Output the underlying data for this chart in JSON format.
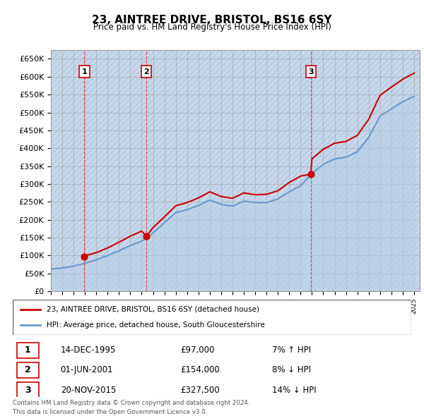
{
  "title": "23, AINTREE DRIVE, BRISTOL, BS16 6SY",
  "subtitle": "Price paid vs. HM Land Registry's House Price Index (HPI)",
  "xlabel": "",
  "ylabel": "",
  "ylim": [
    0,
    675000
  ],
  "yticks": [
    0,
    50000,
    100000,
    150000,
    200000,
    250000,
    300000,
    350000,
    400000,
    450000,
    500000,
    550000,
    600000,
    650000
  ],
  "bg_color": "#dce9f5",
  "hatch_color": "#c0d4e8",
  "grid_color": "#aaaaaa",
  "sale_dates": [
    "1995-12-14",
    "2001-06-01",
    "2015-11-20"
  ],
  "sale_prices": [
    97000,
    154000,
    327500
  ],
  "sale_labels": [
    "1",
    "2",
    "3"
  ],
  "sale_pct": [
    "7% ↑ HPI",
    "8% ↓ HPI",
    "14% ↓ HPI"
  ],
  "sale_dates_str": [
    "14-DEC-1995",
    "01-JUN-2001",
    "20-NOV-2015"
  ],
  "legend_line1": "23, AINTREE DRIVE, BRISTOL, BS16 6SY (detached house)",
  "legend_line2": "HPI: Average price, detached house, South Gloucestershire",
  "footer1": "Contains HM Land Registry data © Crown copyright and database right 2024.",
  "footer2": "This data is licensed under the Open Government Licence v3.0.",
  "hpi_years": [
    1993,
    1994,
    1995,
    1996,
    1997,
    1998,
    1999,
    2000,
    2001,
    2002,
    2003,
    2004,
    2005,
    2006,
    2007,
    2008,
    2009,
    2010,
    2011,
    2012,
    2013,
    2014,
    2015,
    2016,
    2017,
    2018,
    2019,
    2020,
    2021,
    2022,
    2023,
    2024,
    2025
  ],
  "hpi_values": [
    62000,
    65000,
    70000,
    78000,
    88000,
    100000,
    113000,
    128000,
    140000,
    163000,
    192000,
    220000,
    228000,
    240000,
    255000,
    243000,
    238000,
    252000,
    248000,
    248000,
    258000,
    278000,
    295000,
    330000,
    355000,
    370000,
    375000,
    390000,
    430000,
    490000,
    510000,
    530000,
    545000
  ],
  "price_line_years": [
    1995.95,
    1996,
    1997,
    1998,
    1999,
    2000,
    2001,
    2001.42,
    2002,
    2003,
    2004,
    2005,
    2006,
    2007,
    2008,
    2009,
    2010,
    2011,
    2012,
    2013,
    2014,
    2015,
    2015.89,
    2016,
    2017,
    2018,
    2019,
    2020,
    2021,
    2022,
    2023,
    2024,
    2025
  ],
  "price_line_values": [
    97000,
    99000,
    108000,
    121000,
    137000,
    154000,
    168000,
    154000,
    178000,
    208000,
    239000,
    248000,
    261000,
    278000,
    265000,
    260000,
    275000,
    270000,
    271000,
    281000,
    304000,
    322000,
    327500,
    370000,
    397000,
    414000,
    419000,
    436000,
    481000,
    548000,
    571000,
    593000,
    610000
  ]
}
